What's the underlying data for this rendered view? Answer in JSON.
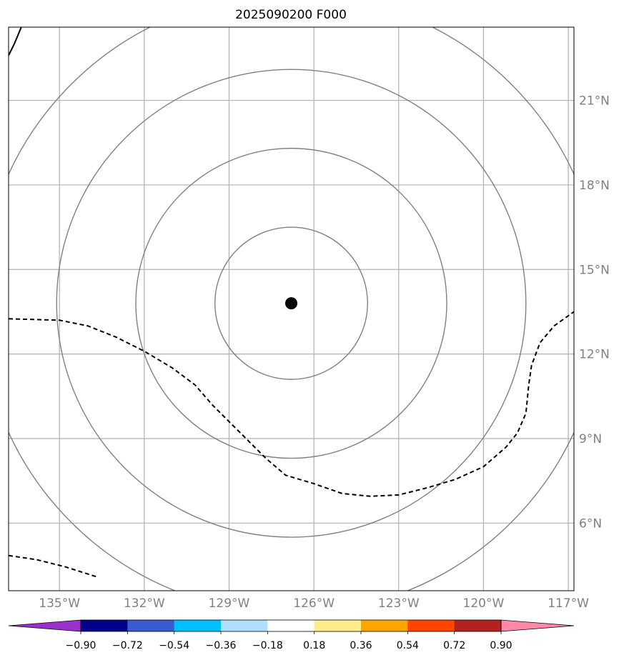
{
  "title": "2025090200 F000",
  "map": {
    "lon_range": [
      -136.8,
      -116.8
    ],
    "lat_range": [
      3.6,
      23.6
    ],
    "lon_ticks": [
      {
        "value": -135,
        "label": "135°W"
      },
      {
        "value": -132,
        "label": "132°W"
      },
      {
        "value": -129,
        "label": "129°W"
      },
      {
        "value": -126,
        "label": "126°W"
      },
      {
        "value": -123,
        "label": "123°W"
      },
      {
        "value": -120,
        "label": "120°W"
      },
      {
        "value": -117,
        "label": "117°W"
      }
    ],
    "lat_ticks": [
      {
        "value": 21,
        "label": "21°N"
      },
      {
        "value": 18,
        "label": "18°N"
      },
      {
        "value": 15,
        "label": "15°N"
      },
      {
        "value": 12,
        "label": "12°N"
      },
      {
        "value": 9,
        "label": "9°N"
      },
      {
        "value": 6,
        "label": "6°N"
      }
    ],
    "gridlines": true,
    "center": {
      "lon": -126.8,
      "lat": 13.8
    },
    "range_rings_deg": [
      2.7,
      5.5,
      8.3,
      11.0
    ],
    "dashed_contour_east": [
      [
        -136.8,
        13.25
      ],
      [
        -135.0,
        13.2
      ],
      [
        -134.0,
        13.0
      ],
      [
        -133.0,
        12.6
      ],
      [
        -132.0,
        12.1
      ],
      [
        -131.0,
        11.5
      ],
      [
        -130.2,
        10.9
      ],
      [
        -129.6,
        10.2
      ],
      [
        -129.0,
        9.6
      ],
      [
        -128.3,
        8.9
      ],
      [
        -127.7,
        8.3
      ],
      [
        -127.0,
        7.7
      ],
      [
        -126.0,
        7.4
      ],
      [
        -125.0,
        7.05
      ],
      [
        -124.0,
        6.95
      ],
      [
        -123.0,
        7.0
      ],
      [
        -122.0,
        7.25
      ],
      [
        -121.0,
        7.55
      ],
      [
        -120.0,
        8.0
      ],
      [
        -119.2,
        8.7
      ],
      [
        -118.8,
        9.2
      ],
      [
        -118.5,
        9.9
      ],
      [
        -118.4,
        10.9
      ],
      [
        -118.3,
        11.6
      ],
      [
        -118.0,
        12.4
      ],
      [
        -117.5,
        13.0
      ],
      [
        -116.8,
        13.5
      ]
    ],
    "dashed_contour_sw": [
      [
        -136.8,
        4.85
      ],
      [
        -135.8,
        4.7
      ],
      [
        -134.8,
        4.45
      ],
      [
        -133.7,
        4.1
      ]
    ],
    "solid_contour_nw": [
      [
        -136.8,
        22.6
      ],
      [
        -136.6,
        23.0
      ],
      [
        -136.35,
        23.6
      ]
    ]
  },
  "colorbar": {
    "extend": "both",
    "levels": [
      -0.9,
      -0.72,
      -0.54,
      -0.36,
      -0.18,
      0.18,
      0.36,
      0.54,
      0.72,
      0.9
    ],
    "tick_labels": [
      "−0.90",
      "−0.72",
      "−0.54",
      "−0.36",
      "−0.18",
      "0.18",
      "0.36",
      "0.54",
      "0.72",
      "0.90"
    ],
    "under_color": "#9932CC",
    "over_color": "#FF88AA",
    "colors": [
      "#00008B",
      "#3A5BD0",
      "#00BFFF",
      "#B0E0FF",
      "#FFFFFF",
      "#FFEC8B",
      "#FFA500",
      "#FF4500",
      "#B22222"
    ]
  }
}
